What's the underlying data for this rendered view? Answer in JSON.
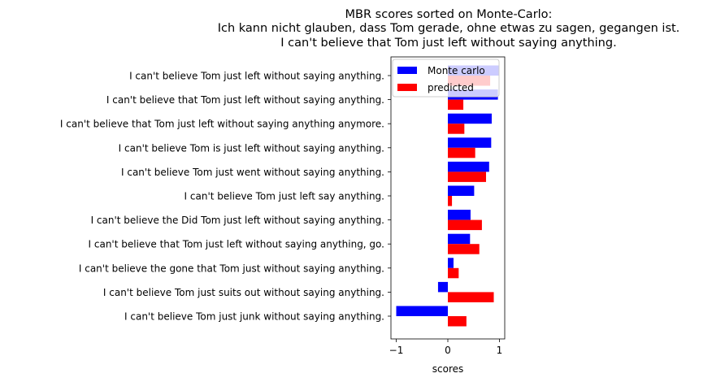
{
  "chart_data": {
    "type": "bar",
    "orientation": "horizontal",
    "title": [
      "MBR scores sorted on Monte-Carlo:",
      "Ich kann nicht glauben, dass Tom gerade, ohne etwas zu sagen, gegangen ist.",
      "I can't believe that Tom just left without saying anything."
    ],
    "xlabel": "scores",
    "xlim": [
      -1.1,
      1.1
    ],
    "xticks": [
      -1,
      0,
      1
    ],
    "xtick_labels": [
      "−1",
      "0",
      "1"
    ],
    "legend_position": "top-right",
    "grid": false,
    "categories": [
      "I can't believe Tom just left without saying anything.",
      "I can't believe that Tom just left without saying anything.",
      "I can't believe that Tom just left without saying anything anymore.",
      "I can't believe Tom is just left without saying anything.",
      "I can't believe Tom just went without saying anything.",
      "I can't believe Tom just left say anything.",
      "I can't believe the Did Tom just left without saying anything.",
      "I can't believe that Tom just left without saying anything, go.",
      "I can't believe the gone that Tom just without saying anything.",
      "I can't believe Tom just suits out without saying anything.",
      "I can't believe Tom just junk without saying anything."
    ],
    "series": [
      {
        "name": "Monte carlo",
        "color": "#0000ff",
        "values": [
          1.0,
          0.97,
          0.85,
          0.84,
          0.8,
          0.51,
          0.44,
          0.43,
          0.11,
          -0.19,
          -1.0
        ]
      },
      {
        "name": "predicted",
        "color": "#ff0000",
        "values": [
          0.82,
          0.3,
          0.32,
          0.53,
          0.74,
          0.08,
          0.66,
          0.61,
          0.21,
          0.89,
          0.36
        ]
      }
    ]
  }
}
